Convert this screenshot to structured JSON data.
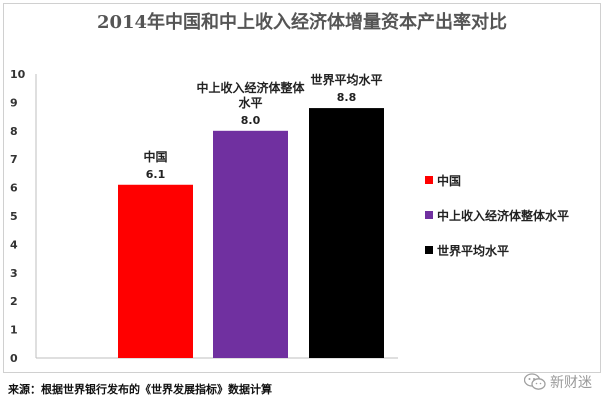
{
  "chart_data": {
    "type": "bar",
    "title": "2014年中国和中上收入经济体增量资本产出率对比",
    "categories": [
      "中国",
      "中上收入经济体整体水平",
      "世界平均水平"
    ],
    "values": [
      6.1,
      8.0,
      8.8
    ],
    "value_labels": [
      "6.1",
      "8.0",
      "8.8"
    ],
    "ylim": [
      0,
      10
    ],
    "yticks": [
      "0",
      "1",
      "2",
      "3",
      "4",
      "5",
      "6",
      "7",
      "8",
      "9",
      "10"
    ],
    "grid": false,
    "legend_position": "right",
    "series": [
      {
        "name": "中国",
        "color": "#ff0000"
      },
      {
        "name": "中上收入经济体整体水平",
        "color": "#7030a0"
      },
      {
        "name": "世界平均水平",
        "color": "#000000"
      }
    ]
  },
  "source_note": "来源：根据世界银行发布的《世界发展指标》数据计算",
  "brand": {
    "icon": "wechat-icon",
    "label": "新财迷"
  }
}
